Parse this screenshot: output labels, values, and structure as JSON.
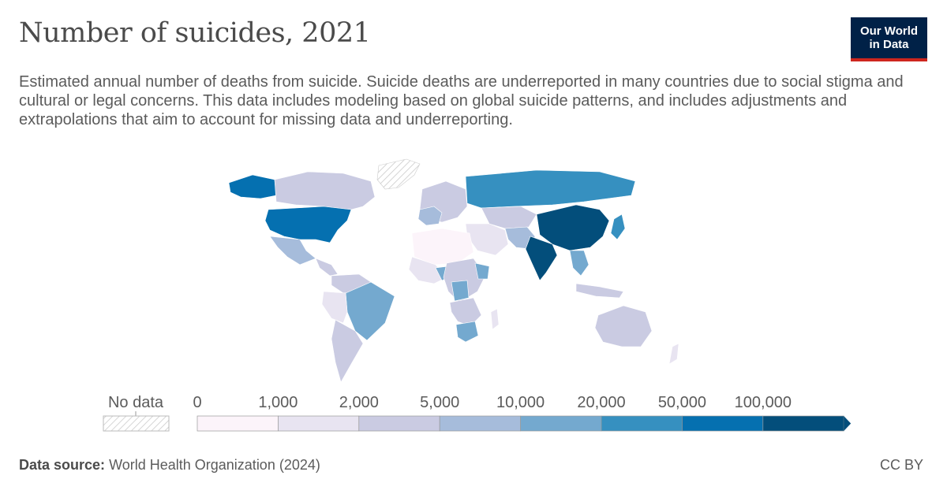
{
  "header": {
    "title": "Number of suicides, 2021",
    "subtitle": "Estimated annual number of deaths from suicide. Suicide deaths are underreported in many countries due to social stigma and cultural or legal concerns. This data includes modeling based on global suicide patterns, and includes adjustments and extrapolations that aim to account for missing data and underreporting.",
    "logo_line1": "Our World",
    "logo_line2": "in Data"
  },
  "legend": {
    "no_data_label": "No data",
    "bins": [
      "0",
      "1,000",
      "2,000",
      "5,000",
      "10,000",
      "20,000",
      "50,000",
      "100,000"
    ],
    "colors": [
      "#fcf4fa",
      "#e8e4f1",
      "#cacbe2",
      "#a6bcdb",
      "#74a9cf",
      "#3690c0",
      "#0570b0",
      "#034e7b"
    ],
    "no_data_color": "#cccccc"
  },
  "footer": {
    "source_label": "Data source:",
    "source_value": "World Health Organization (2024)",
    "license": "CC BY"
  }
}
